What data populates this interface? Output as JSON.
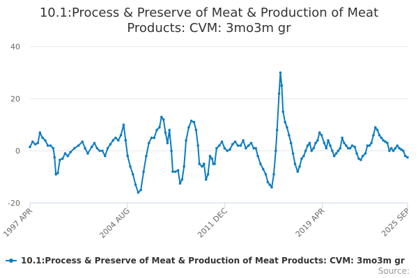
{
  "chart_data": {
    "type": "line",
    "title_lines": [
      "10.1:Process & Preserve of Meat & Production of Meat",
      "Products: CVM: 3mo3m gr"
    ],
    "ylim": [
      -20,
      40
    ],
    "yticks": [
      40,
      20,
      0,
      -20
    ],
    "xlim": [
      1997.25,
      2025.67
    ],
    "xticks": [
      {
        "label": "1997 APR",
        "x": 1997.25
      },
      {
        "label": "2004 AUG",
        "x": 2004.58
      },
      {
        "label": "2011 DEC",
        "x": 2011.92
      },
      {
        "label": "2019 APR",
        "x": 2019.25
      },
      {
        "label": "2025 SEP",
        "x": 2025.67
      }
    ],
    "series": [
      {
        "name": "10.1:Process & Preserve of Meat & Production of Meat Products: CVM: 3mo3m gr",
        "color": "#0b7cc0",
        "points": [
          [
            1997.25,
            1.5
          ],
          [
            1997.45,
            3.5
          ],
          [
            1997.65,
            2.5
          ],
          [
            1997.85,
            3.0
          ],
          [
            1998.0,
            7.0
          ],
          [
            1998.2,
            5.0
          ],
          [
            1998.4,
            4.0
          ],
          [
            1998.6,
            2.0
          ],
          [
            1998.8,
            2.0
          ],
          [
            1999.0,
            1.0
          ],
          [
            1999.1,
            -2.5
          ],
          [
            1999.2,
            -9.0
          ],
          [
            1999.35,
            -8.5
          ],
          [
            1999.5,
            -3.5
          ],
          [
            1999.7,
            -3.0
          ],
          [
            1999.9,
            -1.0
          ],
          [
            2000.1,
            -2.0
          ],
          [
            2000.3,
            -0.5
          ],
          [
            2000.6,
            1.0
          ],
          [
            2000.9,
            2.0
          ],
          [
            2001.2,
            3.5
          ],
          [
            2001.4,
            1.0
          ],
          [
            2001.6,
            -1.0
          ],
          [
            2001.9,
            1.5
          ],
          [
            2002.1,
            3.0
          ],
          [
            2002.3,
            1.0
          ],
          [
            2002.5,
            0.0
          ],
          [
            2002.7,
            0.0
          ],
          [
            2002.9,
            -2.0
          ],
          [
            2003.1,
            1.0
          ],
          [
            2003.3,
            2.5
          ],
          [
            2003.5,
            4.0
          ],
          [
            2003.7,
            5.0
          ],
          [
            2003.9,
            4.0
          ],
          [
            2004.1,
            6.0
          ],
          [
            2004.3,
            10.0
          ],
          [
            2004.45,
            4.0
          ],
          [
            2004.6,
            -2.0
          ],
          [
            2004.8,
            -6.0
          ],
          [
            2005.0,
            -9.0
          ],
          [
            2005.2,
            -13.0
          ],
          [
            2005.4,
            -16.0
          ],
          [
            2005.6,
            -15.0
          ],
          [
            2005.8,
            -8.0
          ],
          [
            2006.0,
            -2.0
          ],
          [
            2006.2,
            3.0
          ],
          [
            2006.4,
            5.0
          ],
          [
            2006.6,
            5.0
          ],
          [
            2006.8,
            8.0
          ],
          [
            2007.0,
            9.0
          ],
          [
            2007.15,
            13.0
          ],
          [
            2007.3,
            12.0
          ],
          [
            2007.45,
            7.0
          ],
          [
            2007.6,
            3.0
          ],
          [
            2007.75,
            8.0
          ],
          [
            2007.9,
            0.0
          ],
          [
            2008.0,
            -8.0
          ],
          [
            2008.2,
            -8.0
          ],
          [
            2008.4,
            -7.5
          ],
          [
            2008.55,
            -12.5
          ],
          [
            2008.7,
            -11.0
          ],
          [
            2008.85,
            -6.0
          ],
          [
            2009.0,
            4.0
          ],
          [
            2009.2,
            9.0
          ],
          [
            2009.4,
            11.5
          ],
          [
            2009.6,
            11.0
          ],
          [
            2009.75,
            8.0
          ],
          [
            2009.9,
            2.0
          ],
          [
            2010.0,
            -5.0
          ],
          [
            2010.2,
            -6.0
          ],
          [
            2010.35,
            -5.0
          ],
          [
            2010.5,
            -11.0
          ],
          [
            2010.65,
            -9.0
          ],
          [
            2010.8,
            -2.0
          ],
          [
            2010.95,
            -3.0
          ],
          [
            2011.05,
            -5.0
          ],
          [
            2011.15,
            -5.0
          ],
          [
            2011.3,
            1.0
          ],
          [
            2011.5,
            2.0
          ],
          [
            2011.7,
            3.5
          ],
          [
            2011.9,
            1.0
          ],
          [
            2012.1,
            0.0
          ],
          [
            2012.3,
            0.5
          ],
          [
            2012.5,
            2.5
          ],
          [
            2012.7,
            3.5
          ],
          [
            2012.9,
            2.0
          ],
          [
            2013.1,
            2.0
          ],
          [
            2013.3,
            4.0
          ],
          [
            2013.5,
            1.0
          ],
          [
            2013.7,
            2.0
          ],
          [
            2013.9,
            3.0
          ],
          [
            2014.1,
            1.0
          ],
          [
            2014.25,
            1.0
          ],
          [
            2014.4,
            -2.0
          ],
          [
            2014.6,
            -5.0
          ],
          [
            2014.8,
            -7.0
          ],
          [
            2015.0,
            -9.0
          ],
          [
            2015.15,
            -12.0
          ],
          [
            2015.3,
            -13.0
          ],
          [
            2015.45,
            -14.0
          ],
          [
            2015.6,
            -9.0
          ],
          [
            2015.75,
            0.0
          ],
          [
            2015.85,
            8.0
          ],
          [
            2016.0,
            22.0
          ],
          [
            2016.1,
            30.0
          ],
          [
            2016.2,
            25.0
          ],
          [
            2016.3,
            15.0
          ],
          [
            2016.45,
            11.0
          ],
          [
            2016.6,
            9.0
          ],
          [
            2016.75,
            6.0
          ],
          [
            2016.9,
            3.0
          ],
          [
            2017.05,
            -1.0
          ],
          [
            2017.2,
            -5.0
          ],
          [
            2017.4,
            -8.0
          ],
          [
            2017.55,
            -6.0
          ],
          [
            2017.7,
            -3.0
          ],
          [
            2017.85,
            -2.0
          ],
          [
            2018.0,
            0.0
          ],
          [
            2018.15,
            2.0
          ],
          [
            2018.3,
            3.0
          ],
          [
            2018.45,
            0.0
          ],
          [
            2018.6,
            1.0
          ],
          [
            2018.75,
            3.0
          ],
          [
            2018.9,
            4.0
          ],
          [
            2019.05,
            7.0
          ],
          [
            2019.2,
            6.0
          ],
          [
            2019.4,
            3.0
          ],
          [
            2019.55,
            1.0
          ],
          [
            2019.7,
            4.0
          ],
          [
            2019.85,
            2.0
          ],
          [
            2020.0,
            0.0
          ],
          [
            2020.15,
            -2.0
          ],
          [
            2020.3,
            -1.0
          ],
          [
            2020.45,
            0.0
          ],
          [
            2020.6,
            1.0
          ],
          [
            2020.75,
            5.0
          ],
          [
            2020.9,
            3.0
          ],
          [
            2021.05,
            2.0
          ],
          [
            2021.2,
            1.0
          ],
          [
            2021.35,
            1.0
          ],
          [
            2021.5,
            2.0
          ],
          [
            2021.7,
            1.5
          ],
          [
            2021.85,
            -1.0
          ],
          [
            2022.0,
            -3.0
          ],
          [
            2022.15,
            -3.5
          ],
          [
            2022.3,
            -2.0
          ],
          [
            2022.5,
            -1.0
          ],
          [
            2022.65,
            2.0
          ],
          [
            2022.8,
            2.0
          ],
          [
            2022.95,
            3.0
          ],
          [
            2023.1,
            6.0
          ],
          [
            2023.25,
            9.0
          ],
          [
            2023.4,
            8.0
          ],
          [
            2023.55,
            6.0
          ],
          [
            2023.7,
            5.0
          ],
          [
            2023.85,
            4.0
          ],
          [
            2024.0,
            3.5
          ],
          [
            2024.15,
            3.0
          ],
          [
            2024.3,
            0.0
          ],
          [
            2024.45,
            1.0
          ],
          [
            2024.6,
            0.0
          ],
          [
            2024.75,
            1.0
          ],
          [
            2024.9,
            2.0
          ],
          [
            2025.05,
            1.0
          ],
          [
            2025.2,
            0.5
          ],
          [
            2025.35,
            0.0
          ],
          [
            2025.5,
            -2.0
          ],
          [
            2025.67,
            -2.5
          ]
        ]
      }
    ],
    "legend_position": "bottom"
  },
  "footer": {
    "source_label": "Source:"
  }
}
